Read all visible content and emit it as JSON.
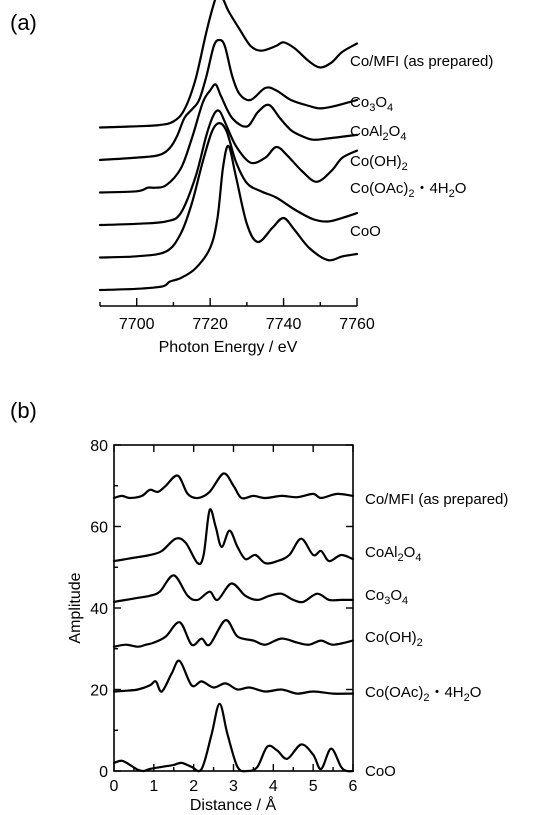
{
  "chart_data": [
    {
      "panel_label": "(a)",
      "type": "line",
      "xlabel": "Photon Energy / eV",
      "ylabel": "",
      "xlim": [
        7690,
        7760
      ],
      "xticks": [
        7700,
        7720,
        7740,
        7760
      ],
      "y_axis": "hidden",
      "series": [
        {
          "name": "Co/MFI (as prepared)",
          "offset": 5,
          "points": [
            [
              7690,
              0
            ],
            [
              7700,
              0.01
            ],
            [
              7706,
              0.02
            ],
            [
              7710,
              0.05
            ],
            [
              7713,
              0.15
            ],
            [
              7716,
              0.4
            ],
            [
              7719,
              0.8
            ],
            [
              7721,
              1.03
            ],
            [
              7722,
              1.1
            ],
            [
              7723.5,
              1.07
            ],
            [
              7725,
              0.97
            ],
            [
              7728,
              0.82
            ],
            [
              7731,
              0.68
            ],
            [
              7734,
              0.64
            ],
            [
              7738,
              0.68
            ],
            [
              7740,
              0.71
            ],
            [
              7743,
              0.66
            ],
            [
              7747,
              0.55
            ],
            [
              7750,
              0.5
            ],
            [
              7753,
              0.54
            ],
            [
              7756,
              0.63
            ],
            [
              7760,
              0.7
            ]
          ]
        },
        {
          "name": "Co3O4",
          "offset": 4,
          "points": [
            [
              7690,
              0
            ],
            [
              7700,
              0.02
            ],
            [
              7706,
              0.04
            ],
            [
              7709,
              0.1
            ],
            [
              7711,
              0.2
            ],
            [
              7713,
              0.35
            ],
            [
              7715,
              0.42
            ],
            [
              7717,
              0.5
            ],
            [
              7719,
              0.7
            ],
            [
              7721,
              0.95
            ],
            [
              7722.5,
              1.0
            ],
            [
              7724,
              0.95
            ],
            [
              7726,
              0.7
            ],
            [
              7728,
              0.55
            ],
            [
              7731,
              0.5
            ],
            [
              7735,
              0.6
            ],
            [
              7738,
              0.58
            ],
            [
              7742,
              0.5
            ],
            [
              7747,
              0.45
            ],
            [
              7750,
              0.43
            ],
            [
              7754,
              0.45
            ],
            [
              7760,
              0.5
            ]
          ]
        },
        {
          "name": "CoAl2O4",
          "offset": 3,
          "points": [
            [
              7690,
              0
            ],
            [
              7700,
              0.01
            ],
            [
              7703,
              0.04
            ],
            [
              7705,
              0.04
            ],
            [
              7708,
              0.06
            ],
            [
              7712,
              0.2
            ],
            [
              7715,
              0.45
            ],
            [
              7718,
              0.75
            ],
            [
              7720,
              0.85
            ],
            [
              7721.5,
              0.9
            ],
            [
              7723,
              0.8
            ],
            [
              7726,
              0.62
            ],
            [
              7730,
              0.55
            ],
            [
              7733,
              0.67
            ],
            [
              7736,
              0.73
            ],
            [
              7739,
              0.62
            ],
            [
              7742,
              0.52
            ],
            [
              7745,
              0.47
            ],
            [
              7748,
              0.44
            ],
            [
              7752,
              0.45
            ],
            [
              7760,
              0.48
            ]
          ]
        },
        {
          "name": "Co(OH)2",
          "offset": 2,
          "points": [
            [
              7690,
              0
            ],
            [
              7700,
              0.01
            ],
            [
              7708,
              0.03
            ],
            [
              7712,
              0.1
            ],
            [
              7716,
              0.4
            ],
            [
              7719,
              0.75
            ],
            [
              7721,
              0.92
            ],
            [
              7722.5,
              0.95
            ],
            [
              7724,
              0.86
            ],
            [
              7727,
              0.66
            ],
            [
              7731,
              0.52
            ],
            [
              7735,
              0.56
            ],
            [
              7738,
              0.65
            ],
            [
              7741,
              0.58
            ],
            [
              7745,
              0.45
            ],
            [
              7749,
              0.36
            ],
            [
              7753,
              0.45
            ],
            [
              7756,
              0.56
            ],
            [
              7760,
              0.62
            ]
          ]
        },
        {
          "name": "Co(OAc)2・4H2O",
          "offset": 1,
          "points": [
            [
              7690,
              0
            ],
            [
              7700,
              0.01
            ],
            [
              7708,
              0.05
            ],
            [
              7712,
              0.2
            ],
            [
              7715,
              0.45
            ],
            [
              7718,
              0.8
            ],
            [
              7720.5,
              1.05
            ],
            [
              7722.5,
              1.12
            ],
            [
              7724.5,
              1.05
            ],
            [
              7727,
              0.8
            ],
            [
              7730,
              0.62
            ],
            [
              7734,
              0.55
            ],
            [
              7738,
              0.5
            ],
            [
              7743,
              0.4
            ],
            [
              7748,
              0.32
            ],
            [
              7752,
              0.3
            ],
            [
              7756,
              0.33
            ],
            [
              7760,
              0.37
            ]
          ]
        },
        {
          "name": "CoO",
          "offset": 0,
          "points": [
            [
              7690,
              0
            ],
            [
              7700,
              0.01
            ],
            [
              7707,
              0.03
            ],
            [
              7709,
              0.07
            ],
            [
              7712,
              0.1
            ],
            [
              7716,
              0.18
            ],
            [
              7720,
              0.35
            ],
            [
              7722,
              0.6
            ],
            [
              7723.5,
              1.02
            ],
            [
              7725,
              1.2
            ],
            [
              7727,
              0.95
            ],
            [
              7730,
              0.55
            ],
            [
              7733,
              0.4
            ],
            [
              7737,
              0.52
            ],
            [
              7740,
              0.6
            ],
            [
              7743,
              0.5
            ],
            [
              7747,
              0.35
            ],
            [
              7752,
              0.25
            ],
            [
              7756,
              0.28
            ],
            [
              7760,
              0.3
            ]
          ]
        }
      ]
    },
    {
      "panel_label": "(b)",
      "type": "line",
      "xlabel": "Distance / Å",
      "ylabel": "Amplitude",
      "xlim": [
        0,
        6
      ],
      "ylim": [
        0,
        80
      ],
      "xticks": [
        0,
        1,
        2,
        3,
        4,
        5,
        6
      ],
      "yticks": [
        0,
        20,
        40,
        60,
        80
      ],
      "series": [
        {
          "name": "Co/MFI (as prepared)",
          "points": [
            [
              0,
              67
            ],
            [
              0.2,
              67.5
            ],
            [
              0.4,
              67
            ],
            [
              0.7,
              67.5
            ],
            [
              0.9,
              69
            ],
            [
              1.1,
              68.5
            ],
            [
              1.3,
              70
            ],
            [
              1.6,
              72.5
            ],
            [
              1.85,
              68
            ],
            [
              2.1,
              67
            ],
            [
              2.4,
              68.5
            ],
            [
              2.75,
              73
            ],
            [
              3,
              70
            ],
            [
              3.2,
              67
            ],
            [
              3.5,
              67.5
            ],
            [
              3.8,
              67
            ],
            [
              4.2,
              67.5
            ],
            [
              4.6,
              67.2
            ],
            [
              5,
              68
            ],
            [
              5.2,
              67
            ],
            [
              5.6,
              68
            ],
            [
              6,
              67.5
            ]
          ]
        },
        {
          "name": "CoAl2O4",
          "points": [
            [
              0,
              51.5
            ],
            [
              0.3,
              52
            ],
            [
              0.6,
              52.5
            ],
            [
              0.9,
              53
            ],
            [
              1.2,
              54
            ],
            [
              1.55,
              57
            ],
            [
              1.8,
              56
            ],
            [
              2.1,
              51
            ],
            [
              2.25,
              53
            ],
            [
              2.4,
              64
            ],
            [
              2.55,
              60
            ],
            [
              2.7,
              55
            ],
            [
              2.9,
              59
            ],
            [
              3.1,
              55
            ],
            [
              3.3,
              52
            ],
            [
              3.55,
              53
            ],
            [
              3.8,
              51
            ],
            [
              4.1,
              51.5
            ],
            [
              4.4,
              53
            ],
            [
              4.7,
              57
            ],
            [
              5,
              53
            ],
            [
              5.2,
              54
            ],
            [
              5.4,
              51.5
            ],
            [
              5.7,
              53
            ],
            [
              6,
              52
            ]
          ]
        },
        {
          "name": "Co3O4",
          "points": [
            [
              0,
              41.5
            ],
            [
              0.3,
              42
            ],
            [
              0.6,
              42.5
            ],
            [
              0.9,
              43
            ],
            [
              1.15,
              44
            ],
            [
              1.5,
              48
            ],
            [
              1.85,
              43
            ],
            [
              2.1,
              42
            ],
            [
              2.4,
              44
            ],
            [
              2.6,
              42
            ],
            [
              2.95,
              46
            ],
            [
              3.3,
              43
            ],
            [
              3.6,
              42
            ],
            [
              3.9,
              43
            ],
            [
              4.2,
              43.5
            ],
            [
              4.5,
              42
            ],
            [
              4.75,
              41.5
            ],
            [
              5.1,
              43.5
            ],
            [
              5.4,
              42
            ],
            [
              5.7,
              42
            ],
            [
              6,
              42
            ]
          ]
        },
        {
          "name": "Co(OH)2",
          "points": [
            [
              0,
              30.5
            ],
            [
              0.3,
              31
            ],
            [
              0.6,
              30.5
            ],
            [
              0.8,
              31
            ],
            [
              1,
              31.5
            ],
            [
              1.3,
              33
            ],
            [
              1.65,
              36.5
            ],
            [
              1.95,
              31
            ],
            [
              2.2,
              32.5
            ],
            [
              2.4,
              31
            ],
            [
              2.8,
              37
            ],
            [
              3.1,
              33
            ],
            [
              3.5,
              32
            ],
            [
              3.8,
              31
            ],
            [
              4.2,
              32.5
            ],
            [
              4.6,
              31.5
            ],
            [
              4.9,
              31
            ],
            [
              5.2,
              32
            ],
            [
              5.5,
              31
            ],
            [
              6,
              32
            ]
          ]
        },
        {
          "name": "Co(OAc)2・4H2O",
          "points": [
            [
              0,
              19.5
            ],
            [
              0.3,
              19.7
            ],
            [
              0.6,
              20
            ],
            [
              0.9,
              21
            ],
            [
              1.05,
              22
            ],
            [
              1.2,
              19.5
            ],
            [
              1.45,
              24
            ],
            [
              1.65,
              27
            ],
            [
              1.95,
              21
            ],
            [
              2.2,
              22
            ],
            [
              2.5,
              20.5
            ],
            [
              2.8,
              21.5
            ],
            [
              3.1,
              20
            ],
            [
              3.4,
              20.5
            ],
            [
              3.8,
              19.5
            ],
            [
              4.2,
              20
            ],
            [
              4.6,
              19
            ],
            [
              5,
              19.5
            ],
            [
              5.5,
              19
            ],
            [
              6,
              19
            ]
          ]
        },
        {
          "name": "CoO",
          "points": [
            [
              0,
              2
            ],
            [
              0.2,
              2.5
            ],
            [
              0.4,
              1.5
            ],
            [
              0.6,
              0.3
            ],
            [
              0.75,
              0
            ],
            [
              0.9,
              0.5
            ],
            [
              1.2,
              1
            ],
            [
              1.5,
              1.5
            ],
            [
              1.7,
              2
            ],
            [
              1.95,
              1
            ],
            [
              2.2,
              0.5
            ],
            [
              2.45,
              9
            ],
            [
              2.65,
              16.5
            ],
            [
              2.85,
              9
            ],
            [
              3.1,
              1
            ],
            [
              3.35,
              0
            ],
            [
              3.6,
              1
            ],
            [
              3.85,
              6
            ],
            [
              4.1,
              5
            ],
            [
              4.35,
              3
            ],
            [
              4.7,
              6.5
            ],
            [
              5,
              4
            ],
            [
              5.2,
              0.5
            ],
            [
              5.45,
              5.5
            ],
            [
              5.7,
              1
            ],
            [
              5.85,
              0
            ],
            [
              6,
              0
            ]
          ]
        }
      ]
    }
  ],
  "labels_a": [
    {
      "pre": "Co/MFI (as prepared)"
    },
    {
      "pre": "Co",
      "s1": "3",
      "m": "O",
      "s2": "4"
    },
    {
      "pre": "CoAl",
      "s1": "2",
      "m": "O",
      "s2": "4"
    },
    {
      "pre": "Co(OH)",
      "s1": "2"
    },
    {
      "pre": "Co(OAc)",
      "s1": "2",
      "m": "・4H",
      "s2": "2",
      "post": "O"
    },
    {
      "pre": "CoO"
    }
  ],
  "labels_b": [
    {
      "pre": "Co/MFI (as prepared)"
    },
    {
      "pre": "CoAl",
      "s1": "2",
      "m": "O",
      "s2": "4"
    },
    {
      "pre": "Co",
      "s1": "3",
      "m": "O",
      "s2": "4"
    },
    {
      "pre": "Co(OH)",
      "s1": "2"
    },
    {
      "pre": "Co(OAc)",
      "s1": "2",
      "m": "・4H",
      "s2": "2",
      "post": "O"
    },
    {
      "pre": "CoO"
    }
  ]
}
